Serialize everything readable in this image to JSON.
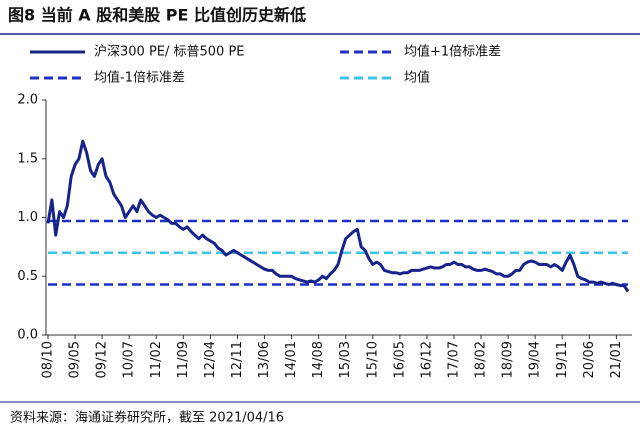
{
  "chart_data": {
    "type": "line",
    "title": "图8  当前 A 股和美股 PE 比值创历史新低",
    "source": "资料来源：海通证券研究所，截至 2021/04/16",
    "categories": [
      "08/10",
      null,
      null,
      null,
      null,
      null,
      null,
      "09/05",
      null,
      null,
      null,
      null,
      null,
      null,
      "09/12",
      null,
      null,
      null,
      null,
      null,
      null,
      "10/07",
      null,
      null,
      null,
      null,
      null,
      null,
      "11/02",
      null,
      null,
      null,
      null,
      null,
      null,
      "11/09",
      null,
      null,
      null,
      null,
      null,
      null,
      "12/04",
      null,
      null,
      null,
      null,
      null,
      null,
      "12/11",
      null,
      null,
      null,
      null,
      null,
      null,
      "13/06",
      null,
      null,
      null,
      null,
      null,
      null,
      "14/01",
      null,
      null,
      null,
      null,
      null,
      null,
      "14/08",
      null,
      null,
      null,
      null,
      null,
      null,
      "15/03",
      null,
      null,
      null,
      null,
      null,
      null,
      "15/10",
      null,
      null,
      null,
      null,
      null,
      null,
      "16/05",
      null,
      null,
      null,
      null,
      null,
      null,
      "16/12",
      null,
      null,
      null,
      null,
      null,
      null,
      "17/07",
      null,
      null,
      null,
      null,
      null,
      null,
      "18/02",
      null,
      null,
      null,
      null,
      null,
      null,
      "18/09",
      null,
      null,
      null,
      null,
      null,
      null,
      "19/04",
      null,
      null,
      null,
      null,
      null,
      null,
      "19/11",
      null,
      null,
      null,
      null,
      null,
      null,
      "20/06",
      null,
      null,
      null,
      null,
      null,
      null,
      "21/01",
      null,
      null,
      null
    ],
    "series": [
      {
        "name": "沪深300 PE/ 标普500 PE",
        "color": "#16238a",
        "values": [
          0.95,
          1.15,
          0.85,
          1.05,
          1.0,
          1.1,
          1.35,
          1.45,
          1.5,
          1.65,
          1.55,
          1.4,
          1.35,
          1.45,
          1.5,
          1.35,
          1.3,
          1.2,
          1.15,
          1.1,
          1.0,
          1.05,
          1.1,
          1.05,
          1.15,
          1.1,
          1.05,
          1.02,
          1.0,
          1.02,
          1.0,
          0.98,
          0.95,
          0.95,
          0.92,
          0.9,
          0.92,
          0.88,
          0.85,
          0.82,
          0.85,
          0.82,
          0.8,
          0.78,
          0.74,
          0.72,
          0.68,
          0.7,
          0.72,
          0.7,
          0.68,
          0.66,
          0.64,
          0.62,
          0.6,
          0.58,
          0.56,
          0.55,
          0.55,
          0.52,
          0.5,
          0.5,
          0.5,
          0.5,
          0.48,
          0.47,
          0.46,
          0.45,
          0.46,
          0.45,
          0.47,
          0.5,
          0.48,
          0.52,
          0.55,
          0.6,
          0.72,
          0.82,
          0.85,
          0.88,
          0.9,
          0.75,
          0.72,
          0.65,
          0.6,
          0.62,
          0.6,
          0.55,
          0.54,
          0.53,
          0.53,
          0.52,
          0.53,
          0.53,
          0.55,
          0.55,
          0.55,
          0.56,
          0.57,
          0.58,
          0.57,
          0.57,
          0.58,
          0.6,
          0.6,
          0.62,
          0.6,
          0.6,
          0.58,
          0.58,
          0.56,
          0.55,
          0.55,
          0.56,
          0.55,
          0.54,
          0.52,
          0.52,
          0.5,
          0.5,
          0.52,
          0.55,
          0.55,
          0.6,
          0.62,
          0.63,
          0.62,
          0.6,
          0.6,
          0.6,
          0.58,
          0.6,
          0.58,
          0.55,
          0.62,
          0.68,
          0.6,
          0.5,
          0.48,
          0.47,
          0.45,
          0.45,
          0.44,
          0.45,
          0.44,
          0.43,
          0.44,
          0.43,
          0.42,
          0.42,
          0.37
        ]
      }
    ],
    "reference_lines": [
      {
        "name": "均值+1倍标准差",
        "value": 0.97,
        "color": "#1f2fc4"
      },
      {
        "name": "均值-1倍标准差",
        "value": 0.43,
        "color": "#1f2fc4"
      },
      {
        "name": "均值",
        "value": 0.7,
        "color": "#3cc3e8"
      }
    ],
    "ylim": [
      0,
      2
    ],
    "yticks": [
      {
        "value": 0,
        "label": "0.0"
      },
      0.5,
      {
        "value": 1,
        "label": "1.0"
      },
      1.5,
      {
        "value": 2,
        "label": "2.0"
      }
    ],
    "grid": false
  }
}
